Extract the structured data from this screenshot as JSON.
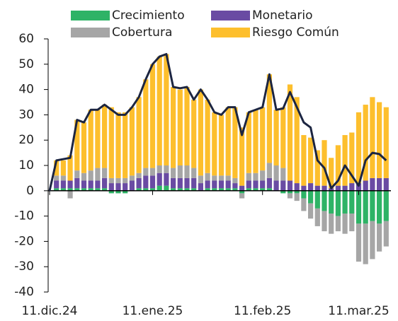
{
  "chart_data": {
    "type": "bar",
    "categories": [
      "11.dic.24",
      null,
      null,
      null,
      null,
      null,
      null,
      null,
      null,
      null,
      null,
      null,
      null,
      null,
      null,
      "11.ene.25",
      null,
      null,
      null,
      null,
      null,
      null,
      null,
      null,
      null,
      null,
      null,
      null,
      null,
      null,
      null,
      "11.feb.25",
      null,
      null,
      null,
      null,
      null,
      null,
      null,
      null,
      null,
      null,
      null,
      null,
      null,
      "11.mar.25",
      null,
      null,
      null,
      null
    ],
    "series": [
      {
        "name": "Crecimiento",
        "color": "#2eb366",
        "values": [
          0,
          1,
          1,
          1,
          1,
          1,
          1,
          1,
          1,
          -1,
          -1,
          -1,
          0,
          1,
          1,
          1,
          2,
          2,
          1,
          1,
          1,
          1,
          0,
          1,
          1,
          1,
          1,
          1,
          -1,
          1,
          1,
          1,
          1,
          0,
          -1,
          -1,
          -1,
          -3,
          -5,
          -7,
          -8,
          -9,
          -10,
          -9,
          -9,
          -13,
          -13,
          -12,
          -13,
          -12
        ]
      },
      {
        "name": "Monetario",
        "color": "#6a4ba3",
        "values": [
          0,
          3,
          3,
          3,
          4,
          3,
          3,
          3,
          4,
          3,
          3,
          3,
          4,
          4,
          5,
          5,
          5,
          5,
          4,
          4,
          4,
          4,
          3,
          3,
          3,
          3,
          3,
          2,
          2,
          3,
          3,
          3,
          4,
          4,
          4,
          4,
          3,
          2,
          3,
          2,
          2,
          1,
          2,
          2,
          3,
          3,
          4,
          5,
          5,
          5
        ]
      },
      {
        "name": "Cobertura",
        "color": "#a6a6a6",
        "values": [
          0,
          2,
          2,
          -3,
          3,
          3,
          4,
          5,
          4,
          2,
          2,
          2,
          2,
          2,
          3,
          3,
          3,
          3,
          4,
          5,
          5,
          4,
          3,
          3,
          2,
          2,
          2,
          2,
          -2,
          3,
          3,
          4,
          6,
          6,
          5,
          -2,
          -3,
          -5,
          -6,
          -7,
          -8,
          -8,
          -6,
          -8,
          -7,
          -15,
          -16,
          -15,
          -11,
          -10
        ]
      },
      {
        "name": "Riesgo Común",
        "color": "#fdbf2d",
        "values": [
          0,
          6,
          6,
          10,
          20,
          20,
          24,
          23,
          25,
          28,
          26,
          26,
          27,
          30,
          35,
          41,
          43,
          44,
          32,
          30,
          31,
          27,
          34,
          29,
          25,
          24,
          27,
          28,
          23,
          24,
          25,
          25,
          35,
          22,
          24,
          38,
          34,
          20,
          18,
          14,
          18,
          12,
          16,
          20,
          20,
          28,
          30,
          32,
          30,
          28
        ]
      }
    ],
    "line": {
      "color": "#1c2541",
      "values": [
        0,
        12,
        12.5,
        13,
        28,
        27,
        32,
        32,
        34,
        32,
        30,
        30,
        33,
        37,
        44,
        50,
        53,
        54,
        41,
        40.5,
        41,
        36,
        40,
        36,
        31,
        30,
        33,
        33,
        22,
        31,
        32,
        33,
        46,
        32,
        32.5,
        39,
        33,
        27,
        25,
        12,
        9,
        1,
        4,
        10,
        6,
        2,
        12,
        15,
        14.5,
        12
      ]
    },
    "ylim": [
      -40,
      60
    ],
    "yticks": [
      -40,
      -30,
      -20,
      -10,
      0,
      10,
      20,
      30,
      40,
      50,
      60
    ]
  }
}
